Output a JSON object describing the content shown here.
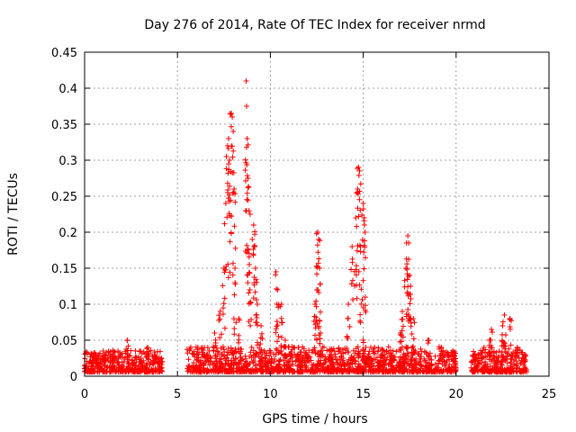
{
  "chart_data": {
    "type": "scatter",
    "title": "Day 276 of 2014, Rate Of TEC Index for receiver nrmd",
    "xlabel": "GPS time / hours",
    "ylabel": "ROTI / TECUs",
    "xlim": [
      0,
      25
    ],
    "ylim": [
      0,
      0.45
    ],
    "xticks": [
      "0",
      "5",
      "10",
      "15",
      "20",
      "25"
    ],
    "yticks": [
      "0",
      "0.05",
      "0.1",
      "0.15",
      "0.2",
      "0.25",
      "0.3",
      "0.35",
      "0.4",
      "0.45"
    ],
    "grid": true,
    "marker": "+",
    "color": "#ff0000",
    "series": [
      {
        "name": "ROTI",
        "points": [
          [
            0.3,
            0.02
          ],
          [
            0.6,
            0.03
          ],
          [
            1.0,
            0.035
          ],
          [
            1.5,
            0.025
          ],
          [
            2.3,
            0.05
          ],
          [
            3.0,
            0.02
          ],
          [
            3.4,
            0.04
          ],
          [
            3.8,
            0.03
          ],
          [
            6.1,
            0.04
          ],
          [
            6.6,
            0.03
          ],
          [
            7.0,
            0.06
          ],
          [
            7.3,
            0.09
          ],
          [
            7.5,
            0.15
          ],
          [
            7.6,
            0.24
          ],
          [
            7.7,
            0.32
          ],
          [
            7.75,
            0.33
          ],
          [
            7.8,
            0.3
          ],
          [
            7.9,
            0.365
          ],
          [
            7.95,
            0.36
          ],
          [
            8.0,
            0.34
          ],
          [
            8.05,
            0.26
          ],
          [
            8.1,
            0.13
          ],
          [
            8.3,
            0.08
          ],
          [
            8.7,
            0.41
          ],
          [
            8.72,
            0.375
          ],
          [
            8.75,
            0.33
          ],
          [
            8.8,
            0.275
          ],
          [
            8.85,
            0.23
          ],
          [
            8.9,
            0.12
          ],
          [
            9.1,
            0.21
          ],
          [
            9.15,
            0.18
          ],
          [
            9.2,
            0.15
          ],
          [
            9.3,
            0.1
          ],
          [
            9.5,
            0.07
          ],
          [
            10.3,
            0.145
          ],
          [
            10.4,
            0.12
          ],
          [
            10.6,
            0.1
          ],
          [
            10.8,
            0.05
          ],
          [
            11.5,
            0.04
          ],
          [
            12.0,
            0.03
          ],
          [
            12.4,
            0.1
          ],
          [
            12.5,
            0.12
          ],
          [
            12.55,
            0.2
          ],
          [
            12.6,
            0.19
          ],
          [
            12.65,
            0.15
          ],
          [
            12.7,
            0.06
          ],
          [
            13.2,
            0.03
          ],
          [
            14.2,
            0.1
          ],
          [
            14.4,
            0.18
          ],
          [
            14.6,
            0.22
          ],
          [
            14.7,
            0.26
          ],
          [
            14.75,
            0.29
          ],
          [
            14.8,
            0.285
          ],
          [
            14.85,
            0.18
          ],
          [
            15.0,
            0.24
          ],
          [
            15.05,
            0.22
          ],
          [
            15.1,
            0.2
          ],
          [
            15.0,
            0.05
          ],
          [
            16.0,
            0.03
          ],
          [
            16.5,
            0.03
          ],
          [
            17.0,
            0.06
          ],
          [
            17.1,
            0.09
          ],
          [
            17.3,
            0.15
          ],
          [
            17.4,
            0.195
          ],
          [
            17.45,
            0.185
          ],
          [
            17.5,
            0.14
          ],
          [
            17.55,
            0.125
          ],
          [
            17.7,
            0.08
          ],
          [
            18.5,
            0.05
          ],
          [
            19.2,
            0.04
          ],
          [
            19.8,
            0.03
          ],
          [
            21.0,
            0.03
          ],
          [
            21.5,
            0.04
          ],
          [
            21.8,
            0.05
          ],
          [
            21.9,
            0.065
          ],
          [
            22.5,
            0.07
          ],
          [
            22.6,
            0.085
          ],
          [
            22.9,
            0.08
          ],
          [
            23.3,
            0.04
          ],
          [
            23.7,
            0.03
          ]
        ],
        "dense_segments": [
          {
            "start": 0.0,
            "end": 4.2,
            "baseline": 0.015,
            "spread": 0.03
          },
          {
            "start": 5.5,
            "end": 20.0,
            "baseline": 0.015,
            "spread": 0.035
          },
          {
            "start": 20.8,
            "end": 23.8,
            "baseline": 0.015,
            "spread": 0.03
          }
        ]
      }
    ]
  }
}
